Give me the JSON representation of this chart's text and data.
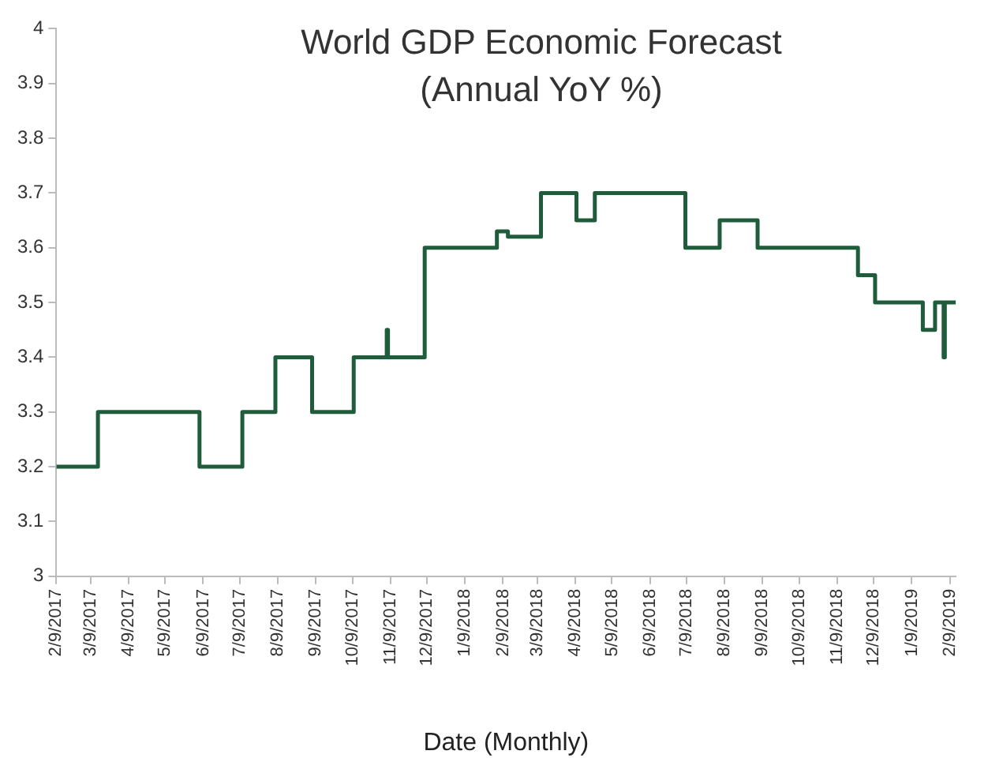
{
  "chart_data": {
    "type": "step",
    "title": "World GDP Economic Forecast",
    "subtitle": "(Annual YoY %)",
    "xlabel": "Date (Monthly)",
    "x": [
      "2017-02-09",
      "2017-03-15",
      "2017-06-06",
      "2017-07-11",
      "2017-08-07",
      "2017-09-06",
      "2017-10-10",
      "2017-11-06",
      "2017-11-07",
      "2017-12-07",
      "2018-02-04",
      "2018-02-13",
      "2018-03-12",
      "2018-04-10",
      "2018-04-25",
      "2018-07-08",
      "2018-08-05",
      "2018-09-05",
      "2018-11-26",
      "2018-12-10",
      "2019-01-18",
      "2019-01-28",
      "2019-02-04",
      "2019-02-05",
      "2019-02-14"
    ],
    "series": [
      {
        "color": "#1f5c3c",
        "values": [
          3.2,
          3.3,
          3.2,
          3.3,
          3.4,
          3.3,
          3.4,
          3.45,
          3.4,
          3.6,
          3.63,
          3.62,
          3.7,
          3.65,
          3.7,
          3.6,
          3.65,
          3.6,
          3.55,
          3.5,
          3.45,
          3.5,
          3.4,
          3.5,
          3.5
        ]
      }
    ],
    "xlim": [
      "2017-02-09",
      "2019-02-14"
    ],
    "xticks": [
      {
        "value": "2017-02-09",
        "label": "2/9/2017"
      },
      {
        "value": "2017-03-09",
        "label": "3/9/2017"
      },
      {
        "value": "2017-04-09",
        "label": "4/9/2017"
      },
      {
        "value": "2017-05-09",
        "label": "5/9/2017"
      },
      {
        "value": "2017-06-09",
        "label": "6/9/2017"
      },
      {
        "value": "2017-07-09",
        "label": "7/9/2017"
      },
      {
        "value": "2017-08-09",
        "label": "8/9/2017"
      },
      {
        "value": "2017-09-09",
        "label": "9/9/2017"
      },
      {
        "value": "2017-10-09",
        "label": "10/9/2017"
      },
      {
        "value": "2017-11-09",
        "label": "11/9/2017"
      },
      {
        "value": "2017-12-09",
        "label": "12/9/2017"
      },
      {
        "value": "2018-01-09",
        "label": "1/9/2018"
      },
      {
        "value": "2018-02-09",
        "label": "2/9/2018"
      },
      {
        "value": "2018-03-09",
        "label": "3/9/2018"
      },
      {
        "value": "2018-04-09",
        "label": "4/9/2018"
      },
      {
        "value": "2018-05-09",
        "label": "5/9/2018"
      },
      {
        "value": "2018-06-09",
        "label": "6/9/2018"
      },
      {
        "value": "2018-07-09",
        "label": "7/9/2018"
      },
      {
        "value": "2018-08-09",
        "label": "8/9/2018"
      },
      {
        "value": "2018-09-09",
        "label": "9/9/2018"
      },
      {
        "value": "2018-10-09",
        "label": "10/9/2018"
      },
      {
        "value": "2018-11-09",
        "label": "11/9/2018"
      },
      {
        "value": "2018-12-09",
        "label": "12/9/2018"
      },
      {
        "value": "2019-01-09",
        "label": "1/9/2019"
      },
      {
        "value": "2019-02-09",
        "label": "2/9/2019"
      }
    ],
    "ylim": [
      3,
      4
    ],
    "yticks": [
      3,
      3.1,
      3.2,
      3.3,
      3.4,
      3.5,
      3.6,
      3.7,
      3.8,
      3.9,
      4
    ],
    "grid": false,
    "legend": false,
    "marker": "none",
    "line_style": "solid"
  }
}
